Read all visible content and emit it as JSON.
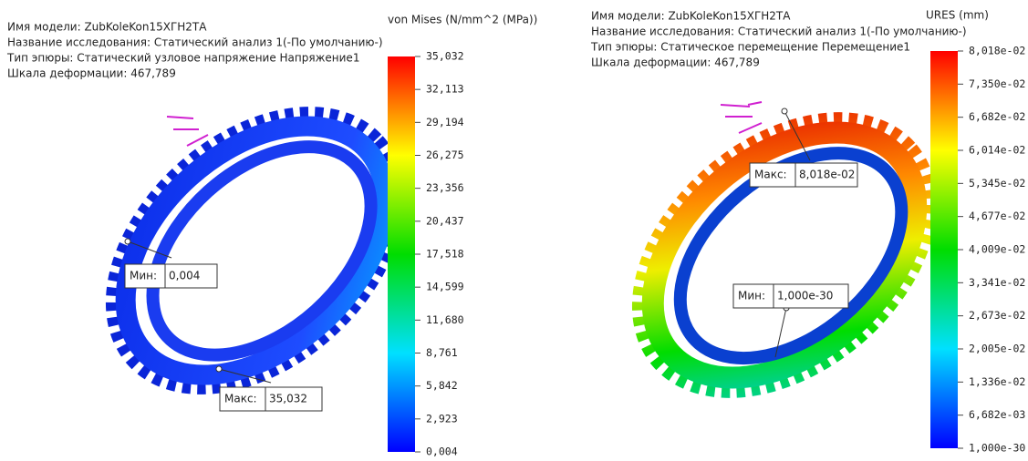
{
  "panels": [
    {
      "info": [
        "Имя модели: ZubKoleKon15XГН2ТА",
        "Название исследования: Статический анализ 1(-По умолчанию-)",
        "Тип эпюры: Статический узловое напряжение Напряжение1",
        "Шкала деформации: 467,789"
      ],
      "legend_title": "von Mises (N/mm^2 (MPa))",
      "legend_labels": [
        "35,032",
        "32,113",
        "29,194",
        "26,275",
        "23,356",
        "20,437",
        "17,518",
        "14,599",
        "11,680",
        "8,761",
        "5,842",
        "2,923",
        "0,004"
      ],
      "min_label": "Мин:",
      "min_value": "0,004",
      "max_label": "Макс:",
      "max_value": "35,032"
    },
    {
      "info": [
        "Имя модели: ZubKoleKon15XГН2ТА",
        "Название исследования: Статический анализ 1(-По умолчанию-)",
        "Тип эпюры: Статическое перемещение Перемещение1",
        "Шкала деформации: 467,789"
      ],
      "legend_title": "URES (mm)",
      "legend_labels": [
        "8,018e-02",
        "7,350e-02",
        "6,682e-02",
        "6,014e-02",
        "5,345e-02",
        "4,677e-02",
        "4,009e-02",
        "3,341e-02",
        "2,673e-02",
        "2,005e-02",
        "1,336e-02",
        "6,682e-03",
        "1,000e-30"
      ],
      "min_label": "Мин:",
      "min_value": "1,000e-30",
      "max_label": "Макс:",
      "max_value": "8,018e-02"
    }
  ]
}
